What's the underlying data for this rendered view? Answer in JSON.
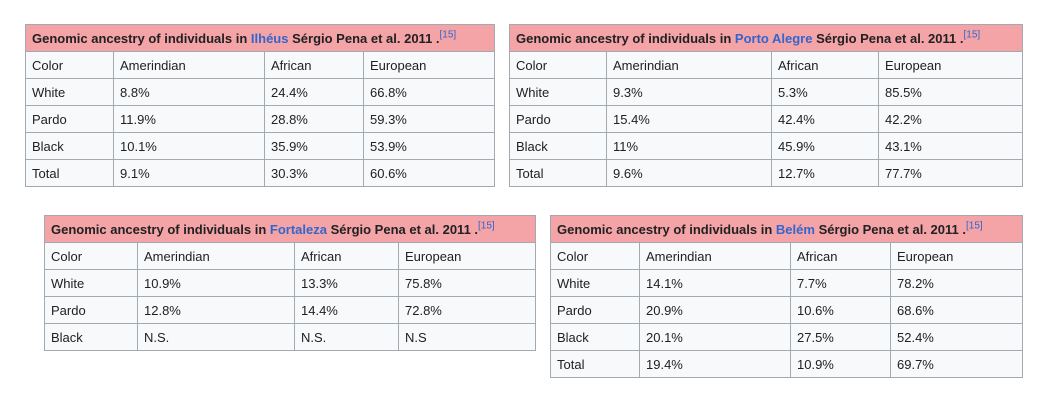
{
  "tables": [
    {
      "caption_prefix": "Genomic ancestry of individuals in",
      "city": "Ilhéus",
      "caption_suffix": "Sérgio Pena et al. 2011 .",
      "ref": "[15]",
      "headers": [
        "Color",
        "Amerindian",
        "African",
        "European"
      ],
      "rows": [
        [
          "White",
          "8.8%",
          "24.4%",
          "66.8%"
        ],
        [
          "Pardo",
          "11.9%",
          "28.8%",
          "59.3%"
        ],
        [
          "Black",
          "10.1%",
          "35.9%",
          "53.9%"
        ],
        [
          "Total",
          "9.1%",
          "30.3%",
          "60.6%"
        ]
      ]
    },
    {
      "caption_prefix": "Genomic ancestry of individuals in",
      "city": "Porto Alegre",
      "caption_suffix": "Sérgio Pena et al. 2011 .",
      "ref": "[15]",
      "headers": [
        "Color",
        "Amerindian",
        "African",
        "European"
      ],
      "rows": [
        [
          "White",
          "9.3%",
          "5.3%",
          "85.5%"
        ],
        [
          "Pardo",
          "15.4%",
          "42.4%",
          "42.2%"
        ],
        [
          "Black",
          "11%",
          "45.9%",
          "43.1%"
        ],
        [
          "Total",
          "9.6%",
          "12.7%",
          "77.7%"
        ]
      ]
    },
    {
      "caption_prefix": "Genomic ancestry of individuals in",
      "city": "Fortaleza",
      "caption_suffix": "Sérgio Pena et al. 2011 .",
      "ref": "[15]",
      "headers": [
        "Color",
        "Amerindian",
        "African",
        "European"
      ],
      "rows": [
        [
          "White",
          "10.9%",
          "13.3%",
          "75.8%"
        ],
        [
          "Pardo",
          "12.8%",
          "14.4%",
          "72.8%"
        ],
        [
          "Black",
          "N.S.",
          "N.S.",
          "N.S"
        ]
      ]
    },
    {
      "caption_prefix": "Genomic ancestry of individuals in",
      "city": "Belém",
      "caption_suffix": "Sérgio Pena et al. 2011 .",
      "ref": "[15]",
      "headers": [
        "Color",
        "Amerindian",
        "African",
        "European"
      ],
      "rows": [
        [
          "White",
          "14.1%",
          "7.7%",
          "78.2%"
        ],
        [
          "Pardo",
          "20.9%",
          "10.6%",
          "68.6%"
        ],
        [
          "Black",
          "20.1%",
          "27.5%",
          "52.4%"
        ],
        [
          "Total",
          "19.4%",
          "10.9%",
          "69.7%"
        ]
      ]
    }
  ]
}
